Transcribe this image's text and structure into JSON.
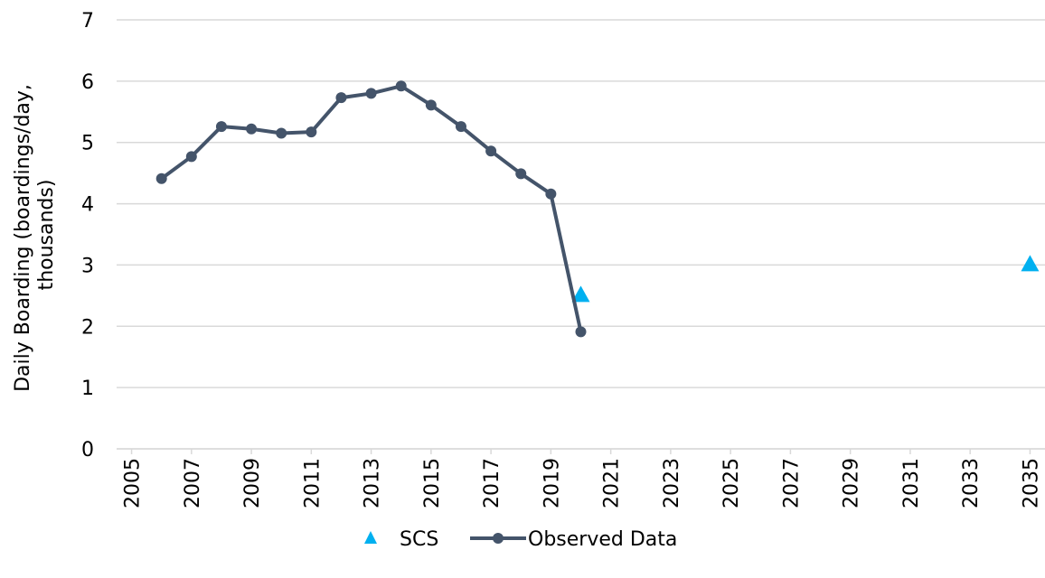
{
  "chart_data": {
    "type": "line",
    "ylabel": [
      "Daily Boarding (boardings/day,",
      "thousands)"
    ],
    "series": [
      {
        "name": "SCS",
        "color": "#00b0f0",
        "marker": "triangle",
        "line": false,
        "x": [
          2020,
          2035
        ],
        "values": [
          2.5,
          3.0
        ]
      },
      {
        "name": "Observed Data",
        "color": "#44546a",
        "marker": "circle",
        "line": true,
        "x": [
          2006,
          2007,
          2008,
          2009,
          2010,
          2011,
          2012,
          2013,
          2014,
          2015,
          2016,
          2017,
          2018,
          2019,
          2020
        ],
        "values": [
          4.41,
          4.77,
          5.26,
          5.22,
          5.15,
          5.17,
          5.73,
          5.8,
          5.92,
          5.61,
          5.26,
          4.86,
          4.49,
          4.16,
          1.91
        ]
      }
    ],
    "xlim": [
      2004.5,
      2035.5
    ],
    "xticks": [
      2005,
      2007,
      2009,
      2011,
      2013,
      2015,
      2017,
      2019,
      2021,
      2023,
      2025,
      2027,
      2029,
      2031,
      2033,
      2035
    ],
    "ylim": [
      0,
      7
    ],
    "yticks": [
      0,
      1,
      2,
      3,
      4,
      5,
      6,
      7
    ],
    "grid": true,
    "legend": "bottom"
  }
}
